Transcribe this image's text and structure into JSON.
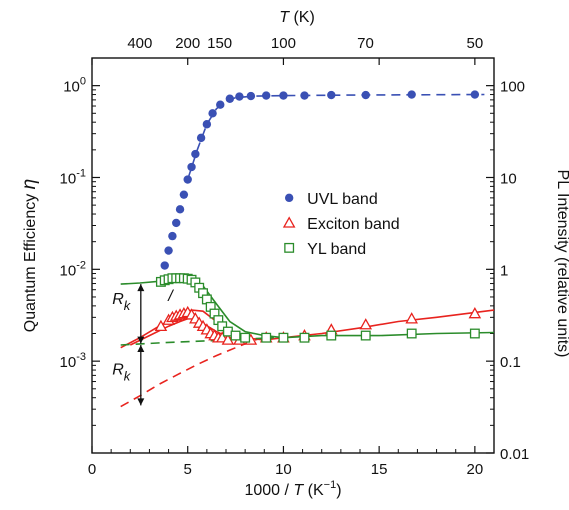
{
  "chart_data": {
    "type": "scatter",
    "x_axis": {
      "label_main": "1000 / ",
      "label_var": "T",
      "label_unit": " (K",
      "label_exp": "−1",
      "label_close": ")",
      "range": [
        0,
        21
      ],
      "ticks": [
        0,
        5,
        10,
        15,
        20
      ],
      "tick_labels": [
        "0",
        "5",
        "10",
        "15",
        "20"
      ]
    },
    "top_axis": {
      "label_var": "T",
      "label_unit": " (K)",
      "ticks": [
        {
          "label": "400",
          "x": 2.5
        },
        {
          "label": "200",
          "x": 5.0
        },
        {
          "label": "150",
          "x": 6.667
        },
        {
          "label": "100",
          "x": 10.0
        },
        {
          "label": "70",
          "x": 14.286
        },
        {
          "label": "50",
          "x": 20.0
        }
      ]
    },
    "y_left": {
      "label_main": "Quantum Efficiency  ",
      "label_var": "η",
      "scale": "log",
      "range": [
        0.0001,
        2
      ],
      "ticks": [
        {
          "v": 0.001,
          "mant": "10",
          "exp": "-3"
        },
        {
          "v": 0.01,
          "mant": "10",
          "exp": "-2"
        },
        {
          "v": 0.1,
          "mant": "10",
          "exp": "-1"
        },
        {
          "v": 1,
          "mant": "10",
          "exp": "0"
        }
      ]
    },
    "y_right": {
      "label": "PL Intensity (relative units)",
      "scale": "log",
      "range": [
        0.01,
        200
      ],
      "ticks": [
        {
          "v": 0.01,
          "label": "0.01"
        },
        {
          "v": 0.1,
          "label": "0.1"
        },
        {
          "v": 1,
          "label": "1"
        },
        {
          "v": 10,
          "label": "10"
        },
        {
          "v": 100,
          "label": "100"
        }
      ]
    },
    "series": [
      {
        "name": "UVL band",
        "marker": "filled-circle",
        "color": "#3a50b4",
        "points": [
          [
            3.8,
            0.011
          ],
          [
            4.0,
            0.016
          ],
          [
            4.2,
            0.023
          ],
          [
            4.4,
            0.032
          ],
          [
            4.6,
            0.045
          ],
          [
            4.8,
            0.065
          ],
          [
            5.0,
            0.095
          ],
          [
            5.2,
            0.13
          ],
          [
            5.4,
            0.18
          ],
          [
            5.7,
            0.27
          ],
          [
            6.0,
            0.38
          ],
          [
            6.3,
            0.5
          ],
          [
            6.7,
            0.62
          ],
          [
            7.2,
            0.72
          ],
          [
            7.7,
            0.76
          ],
          [
            8.3,
            0.77
          ],
          [
            9.1,
            0.78
          ],
          [
            10.0,
            0.78
          ],
          [
            11.1,
            0.78
          ],
          [
            12.5,
            0.79
          ],
          [
            14.3,
            0.79
          ],
          [
            16.7,
            0.8
          ],
          [
            20.0,
            0.8
          ]
        ],
        "fit": [
          [
            5.0,
            0.095
          ],
          [
            5.5,
            0.2
          ],
          [
            6.0,
            0.38
          ],
          [
            6.5,
            0.56
          ],
          [
            7.0,
            0.68
          ],
          [
            7.5,
            0.74
          ],
          [
            8.5,
            0.77
          ],
          [
            10,
            0.78
          ],
          [
            14,
            0.79
          ],
          [
            17,
            0.795
          ],
          [
            20.5,
            0.8
          ]
        ]
      },
      {
        "name": "Exciton band",
        "marker": "open-triangle",
        "color": "#e8231e",
        "points": [
          [
            3.6,
            0.0024
          ],
          [
            4.0,
            0.0028
          ],
          [
            4.2,
            0.003
          ],
          [
            4.4,
            0.0031
          ],
          [
            4.6,
            0.0032
          ],
          [
            4.8,
            0.0033
          ],
          [
            5.0,
            0.0034
          ],
          [
            5.2,
            0.0032
          ],
          [
            5.4,
            0.0029
          ],
          [
            5.6,
            0.0026
          ],
          [
            5.8,
            0.0024
          ],
          [
            6.0,
            0.0022
          ],
          [
            6.2,
            0.002
          ],
          [
            6.4,
            0.0019
          ],
          [
            6.6,
            0.0018
          ],
          [
            6.8,
            0.0018
          ],
          [
            7.1,
            0.0017
          ],
          [
            7.7,
            0.0017
          ],
          [
            8.3,
            0.0017
          ],
          [
            9.1,
            0.0018
          ],
          [
            10.0,
            0.0018
          ],
          [
            11.1,
            0.0019
          ],
          [
            12.5,
            0.0022
          ],
          [
            14.3,
            0.0025
          ],
          [
            16.7,
            0.0029
          ],
          [
            20.0,
            0.0033
          ]
        ],
        "fit_upper": [
          [
            1.5,
            0.0014
          ],
          [
            2.5,
            0.0018
          ],
          [
            3.5,
            0.0024
          ],
          [
            4.5,
            0.0031
          ],
          [
            5.2,
            0.0036
          ],
          [
            5.8,
            0.0035
          ],
          [
            6.5,
            0.0027
          ],
          [
            7.2,
            0.0021
          ],
          [
            8.0,
            0.0018
          ],
          [
            9.0,
            0.0017
          ],
          [
            10,
            0.0018
          ],
          [
            12,
            0.002
          ],
          [
            14,
            0.0023
          ],
          [
            16,
            0.0027
          ],
          [
            18,
            0.003
          ],
          [
            21,
            0.0036
          ]
        ],
        "fit_lower": [
          [
            2.0,
            0.0015
          ],
          [
            3.0,
            0.0019
          ],
          [
            4.0,
            0.0024
          ],
          [
            4.6,
            0.0027
          ],
          [
            5.0,
            0.0029
          ],
          [
            5.4,
            0.0029
          ],
          [
            5.9,
            0.0025
          ],
          [
            6.5,
            0.0021
          ],
          [
            7.2,
            0.0018
          ],
          [
            8.0,
            0.0017
          ]
        ],
        "dashed": [
          [
            1.5,
            0.00032
          ],
          [
            2.5,
            0.00042
          ],
          [
            3.5,
            0.00056
          ],
          [
            4.5,
            0.00072
          ],
          [
            5.5,
            0.00092
          ],
          [
            6.5,
            0.00115
          ],
          [
            7.5,
            0.0014
          ],
          [
            8.5,
            0.0017
          ],
          [
            9.0,
            0.0018
          ]
        ]
      },
      {
        "name": "YL band",
        "marker": "open-square",
        "color": "#2b8c2b",
        "points": [
          [
            3.6,
            0.0073
          ],
          [
            3.8,
            0.0076
          ],
          [
            4.0,
            0.0078
          ],
          [
            4.2,
            0.008
          ],
          [
            4.4,
            0.008
          ],
          [
            4.6,
            0.008
          ],
          [
            4.8,
            0.008
          ],
          [
            5.0,
            0.0079
          ],
          [
            5.2,
            0.0077
          ],
          [
            5.4,
            0.0072
          ],
          [
            5.6,
            0.0063
          ],
          [
            5.8,
            0.0055
          ],
          [
            6.0,
            0.0047
          ],
          [
            6.2,
            0.0039
          ],
          [
            6.4,
            0.0033
          ],
          [
            6.6,
            0.0028
          ],
          [
            6.8,
            0.0024
          ],
          [
            7.1,
            0.0021
          ],
          [
            7.5,
            0.0019
          ],
          [
            8.0,
            0.0018
          ],
          [
            9.1,
            0.0018
          ],
          [
            10.0,
            0.0018
          ],
          [
            11.1,
            0.0018
          ],
          [
            12.5,
            0.0019
          ],
          [
            14.3,
            0.0019
          ],
          [
            16.7,
            0.002
          ],
          [
            20.0,
            0.002
          ]
        ],
        "fit": [
          [
            1.5,
            0.0069
          ],
          [
            2.5,
            0.0071
          ],
          [
            3.5,
            0.0074
          ],
          [
            4.5,
            0.0079
          ],
          [
            5.2,
            0.0078
          ],
          [
            5.8,
            0.0066
          ],
          [
            6.5,
            0.0042
          ],
          [
            7.2,
            0.0027
          ],
          [
            8.0,
            0.0021
          ],
          [
            9.0,
            0.0019
          ],
          [
            10,
            0.0018
          ],
          [
            12,
            0.0019
          ],
          [
            15,
            0.0019
          ],
          [
            18,
            0.002
          ],
          [
            21,
            0.00205
          ]
        ],
        "dashed": [
          [
            1.5,
            0.0015
          ],
          [
            4,
            0.0016
          ],
          [
            7,
            0.0017
          ],
          [
            9.5,
            0.0018
          ]
        ]
      }
    ],
    "annotations": [
      {
        "text_var": "R",
        "text_sub": "k",
        "x": 2.0,
        "y": 0.0042
      },
      {
        "text_var": "R",
        "text_sub": "k",
        "x": 2.0,
        "y": 0.00072
      },
      {
        "text": "/",
        "x": 4.1,
        "y": 0.0045,
        "color": "#3a50b4"
      }
    ],
    "legend": {
      "placement": "center-right"
    },
    "grid": false
  }
}
